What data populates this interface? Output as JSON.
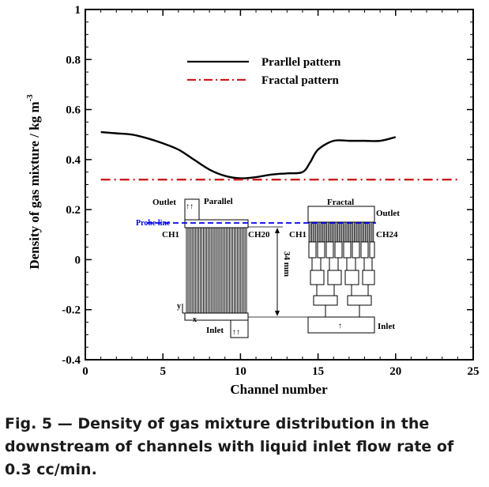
{
  "chart_data": {
    "type": "line",
    "xlabel": "Channel number",
    "ylabel": "Density of gas mixture / kg m",
    "ylabel_exponent": "-3",
    "xlim": [
      0,
      25
    ],
    "ylim": [
      -0.4,
      1.0
    ],
    "xticks": [
      0,
      5,
      10,
      15,
      20,
      25
    ],
    "yticks": [
      -0.4,
      -0.2,
      0,
      0.2,
      0.4,
      0.6,
      0.8,
      1.0
    ],
    "xtick_labels": [
      "0",
      "5",
      "10",
      "15",
      "20",
      "25"
    ],
    "ytick_labels": [
      "-0.4",
      "-0.2",
      "0",
      "0.2",
      "0.4",
      "0.6",
      "0.8",
      "1"
    ],
    "grid": false,
    "legend_position": "top-right",
    "series": [
      {
        "name": "Prarllel pattern",
        "color": "#000000",
        "style": "solid",
        "x": [
          1,
          2,
          3,
          4,
          5,
          6,
          7,
          8,
          9,
          10,
          11,
          12,
          13,
          14,
          14.5,
          15,
          16,
          17,
          18,
          19,
          20
        ],
        "y": [
          0.51,
          0.505,
          0.5,
          0.485,
          0.465,
          0.44,
          0.4,
          0.36,
          0.335,
          0.325,
          0.33,
          0.34,
          0.345,
          0.35,
          0.39,
          0.44,
          0.475,
          0.475,
          0.475,
          0.475,
          0.49
        ]
      },
      {
        "name": "Fractal pattern",
        "color": "#cc1a1a",
        "style": "dash-dot",
        "x": [
          1,
          24
        ],
        "y": [
          0.32,
          0.32
        ]
      }
    ]
  },
  "inset": {
    "parallel": {
      "title": "Parallel",
      "outlet": "Outlet",
      "inlet": "Inlet",
      "first_channel": "CH1",
      "last_channel": "CH20",
      "probe_line": "Probe line",
      "dimension": "34 mm",
      "axis_y": "y",
      "axis_x": "x"
    },
    "fractal": {
      "title": "Fractal",
      "outlet": "Outlet",
      "inlet": "Inlet",
      "first_channel": "CH1",
      "last_channel": "CH24"
    },
    "colors": {
      "probe_line": "#0000ee"
    }
  },
  "caption": {
    "lines": [
      "Fig. 5 — Density of gas mixture distribution in the",
      "downstream of channels with liquid inlet flow rate of",
      "0.3 cc/min."
    ]
  }
}
